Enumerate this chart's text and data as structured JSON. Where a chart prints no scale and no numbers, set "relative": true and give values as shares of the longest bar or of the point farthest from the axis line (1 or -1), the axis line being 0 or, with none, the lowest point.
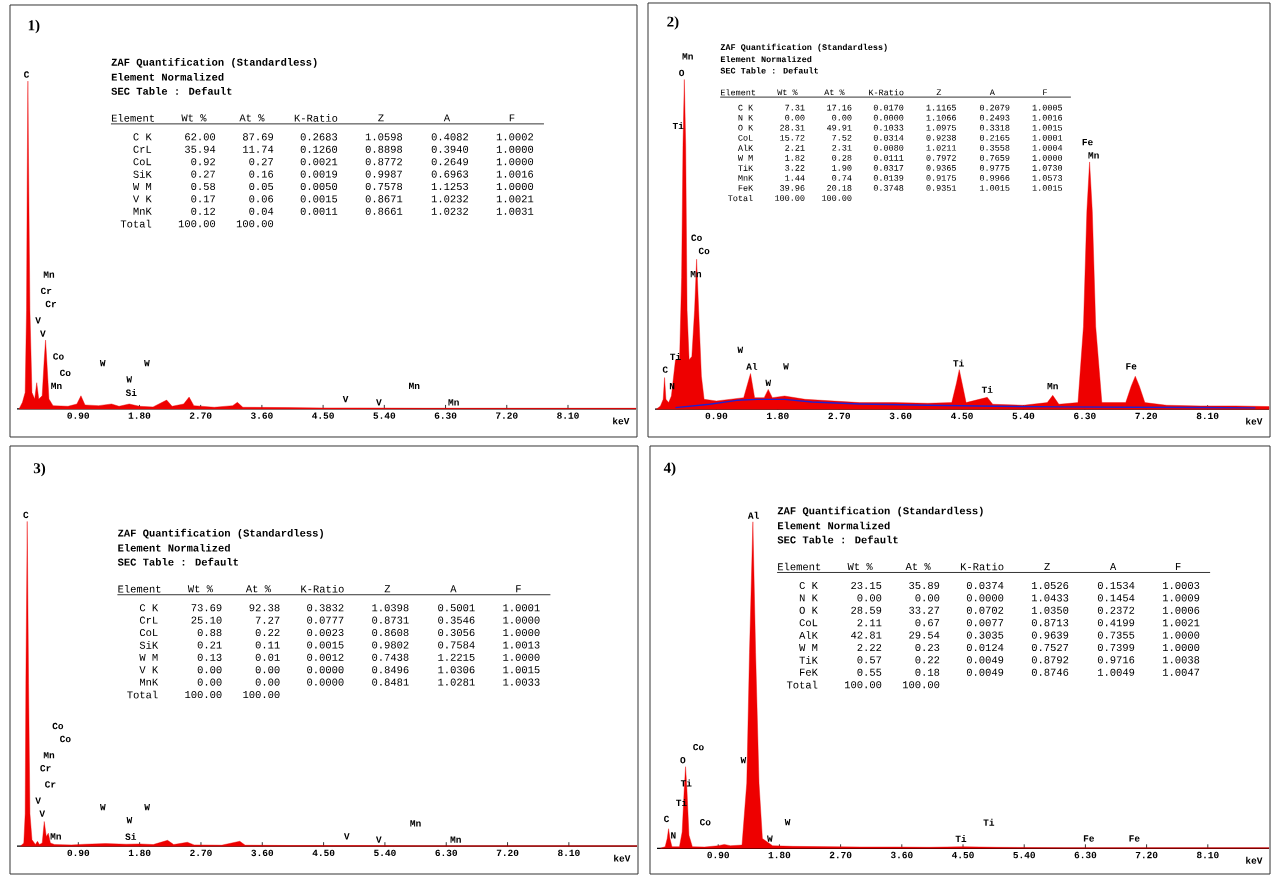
{
  "chart_data": [
    {
      "type": "area",
      "title": "1)",
      "xlabel": "keV",
      "relative": true,
      "xlim": [
        0,
        9.1
      ],
      "xticks": [
        {
          "value": 0.9,
          "label": "0.90"
        },
        {
          "value": 1.8,
          "label": "1.80"
        },
        {
          "value": 2.7,
          "label": "2.70"
        },
        {
          "value": 3.6,
          "label": "3.60"
        },
        {
          "value": 4.5,
          "label": "4.50"
        },
        {
          "value": 5.4,
          "label": "5.40"
        },
        {
          "value": 6.3,
          "label": "6.30"
        },
        {
          "value": 7.2,
          "label": "7.20"
        },
        {
          "value": 8.1,
          "label": "8.10"
        }
      ],
      "x": [
        0.03,
        0.08,
        0.12,
        0.14,
        0.15,
        0.16,
        0.17,
        0.19,
        0.22,
        0.26,
        0.29,
        0.32,
        0.37,
        0.4,
        0.42,
        0.44,
        0.47,
        0.53,
        0.75,
        0.88,
        0.94,
        1.0,
        1.2,
        1.39,
        1.5,
        1.65,
        1.8,
        2.0,
        2.2,
        2.28,
        2.45,
        2.53,
        2.6,
        2.9,
        3.17,
        3.24,
        3.32,
        4.0,
        4.5,
        5.0,
        6.0,
        7.0,
        8.0,
        9.1
      ],
      "series": [
        {
          "color": "#ee0000",
          "values": [
            0,
            0.02,
            0.05,
            0.3,
            0.7,
            1.0,
            0.75,
            0.3,
            0.05,
            0.03,
            0.08,
            0.03,
            0.04,
            0.15,
            0.21,
            0.14,
            0.03,
            0.01,
            0.008,
            0.015,
            0.04,
            0.012,
            0.01,
            0.015,
            0.008,
            0.015,
            0.008,
            0.006,
            0.027,
            0.008,
            0.015,
            0.036,
            0.01,
            0.005,
            0.01,
            0.02,
            0.005,
            0.004,
            0.003,
            0.003,
            0.002,
            0.002,
            0.002,
            0.002
          ]
        }
      ],
      "annotations": [
        "ZAF Quantification (Standardless)",
        "Element Normalized",
        "SEC Table : Default",
        "Element",
        "Wt %",
        "At %",
        "K-Ratio",
        "Z",
        "A",
        "F",
        "C K",
        "62.00",
        "87.69",
        "0.2683",
        "1.0598",
        "0.4082",
        "1.0002",
        "CrL",
        "35.94",
        "11.74",
        "0.1260",
        "0.8898",
        "0.3940",
        "1.0000",
        "CoL",
        "0.92",
        "0.27",
        "0.0021",
        "0.8772",
        "0.2649",
        "1.0000",
        "SiK",
        "0.27",
        "0.16",
        "0.0019",
        "0.9987",
        "0.6963",
        "1.0016",
        "W M",
        "0.58",
        "0.05",
        "0.0050",
        "0.7578",
        "1.1253",
        "1.0000",
        "V K",
        "0.17",
        "0.06",
        "0.0015",
        "0.8671",
        "1.0232",
        "1.0021",
        "MnK",
        "0.12",
        "0.04",
        "0.0011",
        "0.8661",
        "1.0232",
        "1.0031",
        "Total",
        "100.00",
        "100.00",
        "C",
        "Mn",
        "Cr",
        "Cr",
        "V",
        "V",
        "Co",
        "Co",
        "Mn",
        "W",
        "W",
        "Si",
        "W",
        "V",
        "V",
        "Mn",
        "Mn"
      ]
    },
    {
      "type": "area",
      "title": "2)",
      "xlabel": "keV",
      "relative": true,
      "xlim": [
        0,
        9.0
      ],
      "xticks": [
        {
          "value": 0.9,
          "label": "0.90"
        },
        {
          "value": 1.8,
          "label": "1.80"
        },
        {
          "value": 2.7,
          "label": "2.70"
        },
        {
          "value": 3.6,
          "label": "3.60"
        },
        {
          "value": 4.5,
          "label": "4.50"
        },
        {
          "value": 5.4,
          "label": "5.40"
        },
        {
          "value": 6.3,
          "label": "6.30"
        },
        {
          "value": 7.2,
          "label": "7.20"
        },
        {
          "value": 8.1,
          "label": "8.10"
        }
      ],
      "x": [
        0.02,
        0.08,
        0.12,
        0.14,
        0.16,
        0.2,
        0.24,
        0.3,
        0.36,
        0.39,
        0.41,
        0.43,
        0.45,
        0.47,
        0.5,
        0.54,
        0.58,
        0.61,
        0.64,
        0.68,
        0.72,
        0.9,
        1.1,
        1.3,
        1.4,
        1.46,
        1.6,
        1.66,
        1.72,
        1.9,
        2.2,
        2.6,
        3.0,
        3.5,
        4.0,
        4.35,
        4.42,
        4.46,
        4.5,
        4.56,
        4.87,
        4.95,
        5.4,
        5.75,
        5.83,
        5.92,
        6.2,
        6.28,
        6.33,
        6.37,
        6.41,
        6.46,
        6.55,
        6.9,
        6.98,
        7.04,
        7.1,
        7.18,
        7.5,
        8.0,
        8.5,
        9.0
      ],
      "series": [
        {
          "color": "#ee0000",
          "values": [
            0,
            0.01,
            0.03,
            0.096,
            0.03,
            0.02,
            0.04,
            0.15,
            0.15,
            0.4,
            0.8,
            1.0,
            0.8,
            0.3,
            0.15,
            0.16,
            0.3,
            0.455,
            0.3,
            0.1,
            0.03,
            0.025,
            0.03,
            0.035,
            0.108,
            0.035,
            0.035,
            0.06,
            0.035,
            0.04,
            0.03,
            0.025,
            0.02,
            0.02,
            0.018,
            0.02,
            0.08,
            0.12,
            0.08,
            0.02,
            0.036,
            0.015,
            0.012,
            0.02,
            0.042,
            0.015,
            0.02,
            0.25,
            0.6,
            0.75,
            0.6,
            0.25,
            0.02,
            0.02,
            0.07,
            0.1,
            0.07,
            0.02,
            0.012,
            0.01,
            0.01,
            0.008
          ]
        },
        {
          "type": "line",
          "color": "#2020d0",
          "x": [
            0.3,
            0.8,
            1.2,
            1.5,
            1.9,
            2.3,
            3.0,
            4.0,
            5.0,
            6.0,
            7.0,
            8.0,
            8.8
          ],
          "values": [
            0.005,
            0.015,
            0.027,
            0.03,
            0.03,
            0.022,
            0.016,
            0.012,
            0.009,
            0.007,
            0.006,
            0.005,
            0.004
          ]
        }
      ],
      "annotations": [
        "ZAF Quantification (Standardless)",
        "Element Normalized",
        "SEC Table : Default",
        "Element",
        "Wt %",
        "At %",
        "K-Ratio",
        "Z",
        "A",
        "F",
        "C K",
        "7.31",
        "17.16",
        "0.0170",
        "1.1165",
        "0.2079",
        "1.0005",
        "N K",
        "0.00",
        "0.00",
        "0.0000",
        "1.1066",
        "0.2493",
        "1.0016",
        "O K",
        "28.31",
        "49.91",
        "0.1033",
        "1.0975",
        "0.3318",
        "1.0015",
        "CoL",
        "15.72",
        "7.52",
        "0.0314",
        "0.9238",
        "0.2165",
        "1.0001",
        "AlK",
        "2.21",
        "2.31",
        "0.0080",
        "1.0211",
        "0.3558",
        "1.0004",
        "W M",
        "1.82",
        "0.28",
        "0.0111",
        "0.7972",
        "0.7659",
        "1.0000",
        "TiK",
        "3.22",
        "1.90",
        "0.0317",
        "0.9365",
        "0.9775",
        "1.0730",
        "MnK",
        "1.44",
        "0.74",
        "0.0139",
        "0.9175",
        "0.9966",
        "1.0573",
        "FeK",
        "39.96",
        "20.18",
        "0.3748",
        "0.9351",
        "1.0015",
        "1.0015",
        "Total",
        "100.00",
        "100.00",
        "Mn",
        "O",
        "Ti",
        "Co",
        "Co",
        "Mn",
        "Ti",
        "C",
        "N",
        "W",
        "Al",
        "W",
        "W",
        "Ti",
        "Ti",
        "Mn",
        "Fe",
        "Mn",
        "Fe"
      ]
    },
    {
      "type": "area",
      "title": "3)",
      "xlabel": "keV",
      "relative": true,
      "xlim": [
        0,
        9.1
      ],
      "xticks": [
        {
          "value": 0.9,
          "label": "0.90"
        },
        {
          "value": 1.8,
          "label": "1.80"
        },
        {
          "value": 2.7,
          "label": "2.70"
        },
        {
          "value": 3.6,
          "label": "3.60"
        },
        {
          "value": 4.5,
          "label": "4.50"
        },
        {
          "value": 5.4,
          "label": "5.40"
        },
        {
          "value": 6.3,
          "label": "6.30"
        },
        {
          "value": 7.2,
          "label": "7.20"
        },
        {
          "value": 8.1,
          "label": "8.10"
        }
      ],
      "x": [
        0.05,
        0.1,
        0.12,
        0.13,
        0.15,
        0.17,
        0.19,
        0.22,
        0.27,
        0.3,
        0.33,
        0.37,
        0.4,
        0.43,
        0.46,
        0.49,
        0.55,
        0.8,
        1.0,
        1.3,
        1.6,
        1.8,
        2.0,
        2.21,
        2.3,
        2.5,
        2.6,
        3.0,
        3.27,
        3.35,
        4.0,
        5.0,
        6.0,
        7.0,
        8.0,
        9.1
      ],
      "series": [
        {
          "color": "#ee0000",
          "values": [
            0,
            0.01,
            0.1,
            0.5,
            1.0,
            0.5,
            0.1,
            0.02,
            0.005,
            0.015,
            0.005,
            0.01,
            0.076,
            0.03,
            0.04,
            0.01,
            0.005,
            0.004,
            0.006,
            0.008,
            0.006,
            0.007,
            0.005,
            0.018,
            0.005,
            0.012,
            0.004,
            0.003,
            0.015,
            0.003,
            0.002,
            0.002,
            0.001,
            0.001,
            0.001,
            0.001
          ]
        }
      ],
      "annotations": [
        "ZAF Quantification (Standardless)",
        "Element Normalized",
        "SEC Table : Default",
        "Element",
        "Wt %",
        "At %",
        "K-Ratio",
        "Z",
        "A",
        "F",
        "C K",
        "73.69",
        "92.38",
        "0.3832",
        "1.0398",
        "0.5001",
        "1.0001",
        "CrL",
        "25.10",
        "7.27",
        "0.0777",
        "0.8731",
        "0.3546",
        "1.0000",
        "CoL",
        "0.88",
        "0.22",
        "0.0023",
        "0.8608",
        "0.3056",
        "1.0000",
        "SiK",
        "0.21",
        "0.11",
        "0.0015",
        "0.9802",
        "0.7584",
        "1.0013",
        "W M",
        "0.13",
        "0.01",
        "0.0012",
        "0.7438",
        "1.2215",
        "1.0000",
        "V K",
        "0.00",
        "0.00",
        "0.0000",
        "0.8496",
        "1.0306",
        "1.0015",
        "MnK",
        "0.00",
        "0.00",
        "0.0000",
        "0.8481",
        "1.0281",
        "1.0033",
        "Total",
        "100.00",
        "100.00",
        "C",
        "Co",
        "Co",
        "Mn",
        "Cr",
        "Cr",
        "V",
        "V",
        "Mn",
        "W",
        "W",
        "Si",
        "W",
        "V",
        "V",
        "Mn",
        "Mn"
      ]
    },
    {
      "type": "area",
      "title": "4)",
      "xlabel": "keV",
      "relative": true,
      "xlim": [
        0,
        9.0
      ],
      "xticks": [
        {
          "value": 0.9,
          "label": "0.90"
        },
        {
          "value": 1.8,
          "label": "1.80"
        },
        {
          "value": 2.7,
          "label": "2.70"
        },
        {
          "value": 3.6,
          "label": "3.60"
        },
        {
          "value": 4.5,
          "label": "4.50"
        },
        {
          "value": 5.4,
          "label": "5.40"
        },
        {
          "value": 6.3,
          "label": "6.30"
        },
        {
          "value": 7.2,
          "label": "7.20"
        },
        {
          "value": 8.1,
          "label": "8.10"
        }
      ],
      "x": [
        0.05,
        0.12,
        0.15,
        0.17,
        0.19,
        0.22,
        0.33,
        0.37,
        0.4,
        0.42,
        0.44,
        0.47,
        0.52,
        0.7,
        0.9,
        0.99,
        1.08,
        1.25,
        1.32,
        1.36,
        1.41,
        1.45,
        1.5,
        1.55,
        1.7,
        2.0,
        2.5,
        3.0,
        3.5,
        4.0,
        4.5,
        5.0,
        6.0,
        7.0,
        8.0,
        9.0
      ],
      "series": [
        {
          "color": "#ee0000",
          "values": [
            0,
            0.005,
            0.03,
            0.06,
            0.03,
            0.005,
            0.005,
            0.05,
            0.18,
            0.25,
            0.18,
            0.04,
            0.005,
            0.004,
            0.008,
            0.012,
            0.008,
            0.01,
            0.2,
            0.6,
            1.0,
            0.6,
            0.2,
            0.03,
            0.008,
            0.006,
            0.005,
            0.004,
            0.004,
            0.003,
            0.005,
            0.003,
            0.002,
            0.002,
            0.002,
            0.002
          ]
        }
      ],
      "annotations": [
        "ZAF Quantification (Standardless)",
        "Element Normalized",
        "SEC Table : Default",
        "Element",
        "Wt %",
        "At %",
        "K-Ratio",
        "Z",
        "A",
        "F",
        "C K",
        "23.15",
        "35.89",
        "0.0374",
        "1.0526",
        "0.1534",
        "1.0003",
        "N K",
        "0.00",
        "0.00",
        "0.0000",
        "1.0433",
        "0.1454",
        "1.0009",
        "O K",
        "28.59",
        "33.27",
        "0.0702",
        "1.0350",
        "0.2372",
        "1.0006",
        "CoL",
        "2.11",
        "0.67",
        "0.0077",
        "0.8713",
        "0.4199",
        "1.0021",
        "AlK",
        "42.81",
        "29.54",
        "0.3035",
        "0.9639",
        "0.7355",
        "1.0000",
        "W M",
        "2.22",
        "0.23",
        "0.0124",
        "0.7527",
        "0.7399",
        "1.0000",
        "TiK",
        "0.57",
        "0.22",
        "0.0049",
        "0.8792",
        "0.9716",
        "1.0038",
        "FeK",
        "0.55",
        "0.18",
        "0.0049",
        "0.8746",
        "1.0049",
        "1.0047",
        "Total",
        "100.00",
        "100.00",
        "Al",
        "Co",
        "O",
        "Ti",
        "Ti",
        "C",
        "N",
        "Co",
        "W",
        "W",
        "W",
        "Ti",
        "Ti",
        "Fe",
        "Fe"
      ]
    }
  ]
}
